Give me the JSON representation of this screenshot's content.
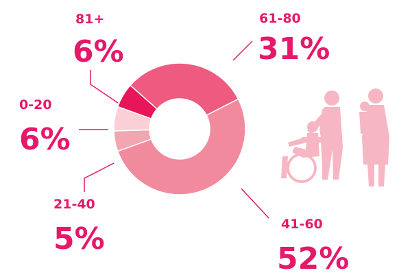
{
  "chart_data": {
    "type": "pie",
    "donut": true,
    "categories": [
      "61-80",
      "41-60",
      "21-40",
      "0-20",
      "81+"
    ],
    "values": [
      31,
      52,
      5,
      6,
      6
    ],
    "value_labels": [
      "31%",
      "52%",
      "5%",
      "6%",
      "6%"
    ],
    "colors": [
      "#ee5a80",
      "#f28a9e",
      "#f4a5b2",
      "#fad0d6",
      "#e8155a"
    ]
  }
}
